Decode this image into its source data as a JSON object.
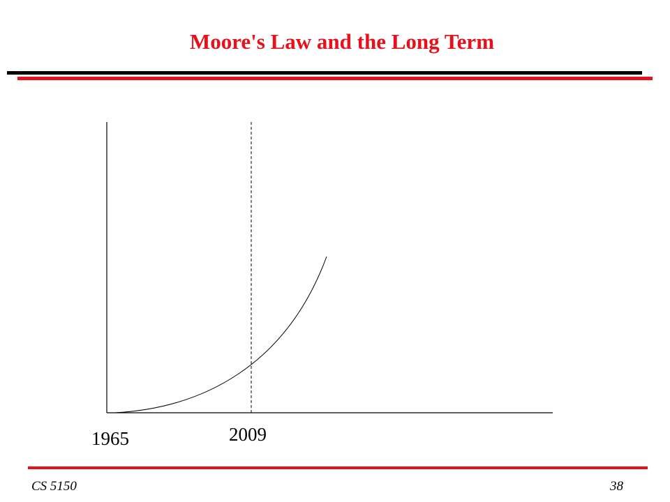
{
  "header": {
    "title": "Moore's Law and the Long Term"
  },
  "diagram": {
    "labels": [
      "1965",
      "2009"
    ]
  },
  "footer": {
    "course": "CS 5150",
    "page": "38"
  }
}
